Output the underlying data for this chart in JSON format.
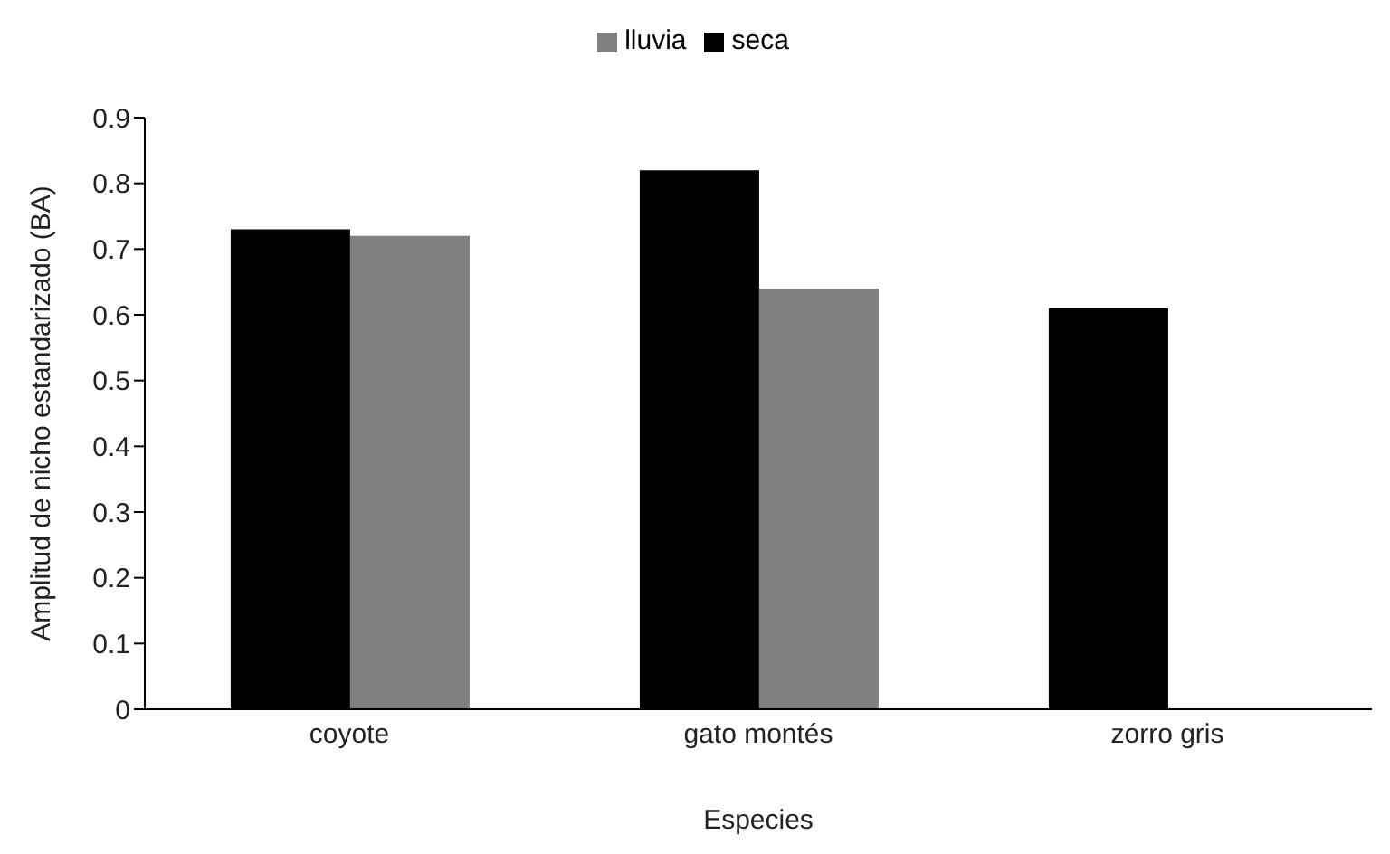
{
  "chart_data": {
    "type": "bar",
    "xlabel": "Especies",
    "ylabel": "Amplitud de nicho estandarizado  (BA)",
    "categories": [
      "coyote",
      "gato montés",
      "zorro gris"
    ],
    "series": [
      {
        "name": "seca",
        "color": "#000000",
        "values": [
          0.73,
          0.82,
          0.61
        ]
      },
      {
        "name": "lluvia",
        "color": "#808080",
        "values": [
          0.72,
          0.64,
          null
        ]
      }
    ],
    "ylim": [
      0,
      0.9
    ],
    "yticks": [
      0,
      {
        "value": 0.1,
        "label": "0.1"
      },
      {
        "value": 0.2,
        "label": "0.2"
      },
      {
        "value": 0.3,
        "label": "0.3"
      },
      {
        "value": 0.4,
        "label": "0.4"
      },
      {
        "value": 0.5,
        "label": "0.5"
      },
      {
        "value": 0.6,
        "label": "0.6"
      },
      {
        "value": 0.7,
        "label": "0.7"
      },
      {
        "value": 0.8,
        "label": "0.8"
      },
      {
        "value": 0.9,
        "label": "0.9"
      }
    ],
    "grid": false,
    "legend": "top"
  }
}
